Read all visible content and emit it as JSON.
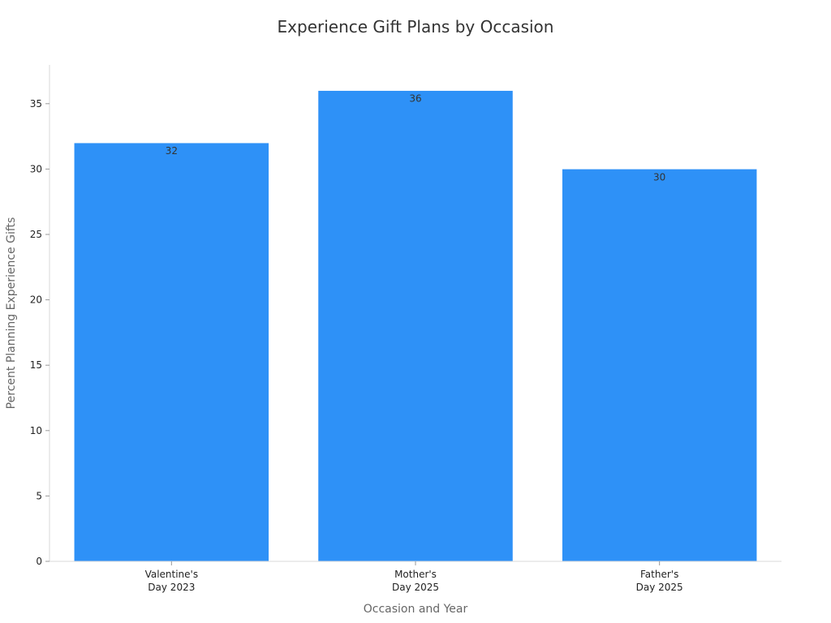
{
  "chart_data": {
    "type": "bar",
    "title": "Experience Gift Plans by Occasion",
    "xlabel": "Occasion and Year",
    "ylabel": "Percent Planning Experience Gifts",
    "categories": [
      [
        "Valentine's",
        "Day 2023"
      ],
      [
        "Mother's",
        "Day 2025"
      ],
      [
        "Father's",
        "Day 2025"
      ]
    ],
    "values": [
      32,
      36,
      30
    ],
    "ylim": [
      0,
      38
    ],
    "yticks": [
      0,
      5,
      10,
      15,
      20,
      25,
      30,
      35
    ],
    "bar_color": "#2e91f7",
    "grid": false,
    "legend": "none"
  }
}
